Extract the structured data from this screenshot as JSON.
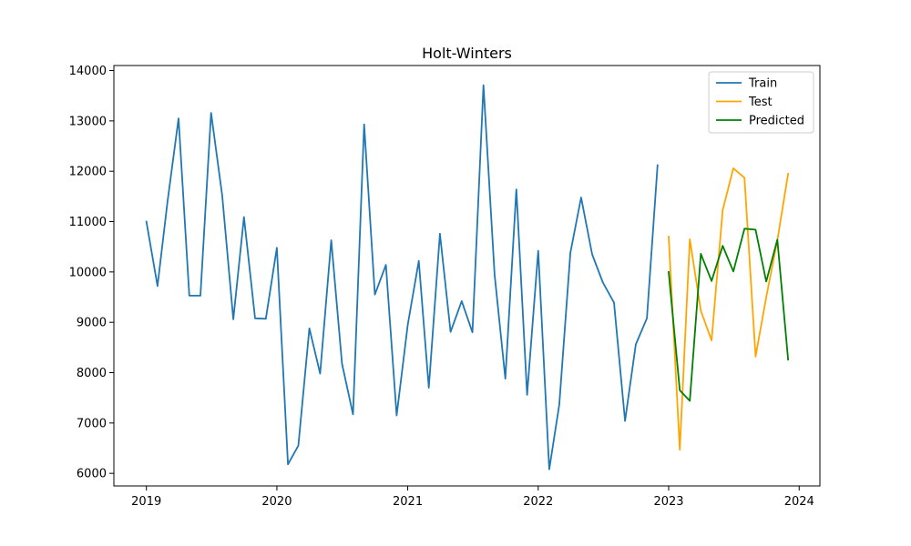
{
  "chart_data": {
    "type": "line",
    "title": "Holt-Winters",
    "xlabel": "",
    "ylabel": "",
    "x_ticks": [
      "2019",
      "2020",
      "2021",
      "2022",
      "2023",
      "2024"
    ],
    "y_ticks": [
      "6000",
      "7000",
      "8000",
      "9000",
      "10000",
      "11000",
      "12000",
      "13000",
      "14000"
    ],
    "xlim": [
      "2018-10-02",
      "2024-02-28"
    ],
    "ylim": [
      5750,
      14100
    ],
    "grid": false,
    "legend_position": "top-right",
    "series": [
      {
        "name": "Train",
        "color": "#1f77b4",
        "x": [
          "2019-01-01",
          "2019-02-01",
          "2019-03-01",
          "2019-04-01",
          "2019-05-01",
          "2019-06-01",
          "2019-07-01",
          "2019-08-01",
          "2019-09-01",
          "2019-10-01",
          "2019-11-01",
          "2019-12-01",
          "2020-01-01",
          "2020-02-01",
          "2020-03-01",
          "2020-04-01",
          "2020-05-01",
          "2020-06-01",
          "2020-07-01",
          "2020-08-01",
          "2020-09-01",
          "2020-10-01",
          "2020-11-01",
          "2020-12-01",
          "2021-01-01",
          "2021-02-01",
          "2021-03-01",
          "2021-04-01",
          "2021-05-01",
          "2021-06-01",
          "2021-07-01",
          "2021-08-01",
          "2021-09-01",
          "2021-10-01",
          "2021-11-01",
          "2021-12-01",
          "2022-01-01",
          "2022-02-01",
          "2022-03-01",
          "2022-04-01",
          "2022-05-01",
          "2022-06-01",
          "2022-07-01",
          "2022-08-01",
          "2022-09-01",
          "2022-10-01",
          "2022-11-01",
          "2022-12-01"
        ],
        "values": [
          11000,
          9720,
          11400,
          13050,
          9530,
          9530,
          13160,
          11520,
          9060,
          11090,
          9080,
          9070,
          10480,
          6180,
          6550,
          8880,
          7980,
          10630,
          8180,
          7170,
          12930,
          9550,
          10140,
          7150,
          8950,
          10220,
          7700,
          10760,
          8810,
          9420,
          8800,
          13710,
          9950,
          7880,
          11640,
          7560,
          10420,
          6080,
          7360,
          10380,
          11480,
          10350,
          9790,
          9390,
          7040,
          8560,
          9080,
          12120
        ]
      },
      {
        "name": "Test",
        "color": "#ffa500",
        "x": [
          "2023-01-01",
          "2023-02-01",
          "2023-03-01",
          "2023-04-01",
          "2023-05-01",
          "2023-06-01",
          "2023-07-01",
          "2023-08-01",
          "2023-09-01",
          "2023-10-01",
          "2023-11-01",
          "2023-12-01"
        ],
        "values": [
          10700,
          6470,
          10650,
          9230,
          8640,
          11230,
          12060,
          11870,
          8320,
          9500,
          10630,
          11950
        ]
      },
      {
        "name": "Predicted",
        "color": "#008000",
        "x": [
          "2023-01-01",
          "2023-02-01",
          "2023-03-01",
          "2023-04-01",
          "2023-05-01",
          "2023-06-01",
          "2023-07-01",
          "2023-08-01",
          "2023-09-01",
          "2023-10-01",
          "2023-11-01",
          "2023-12-01"
        ],
        "values": [
          10000,
          7650,
          7440,
          10360,
          9820,
          10520,
          10010,
          10860,
          10840,
          9810,
          10640,
          8260
        ]
      }
    ]
  }
}
